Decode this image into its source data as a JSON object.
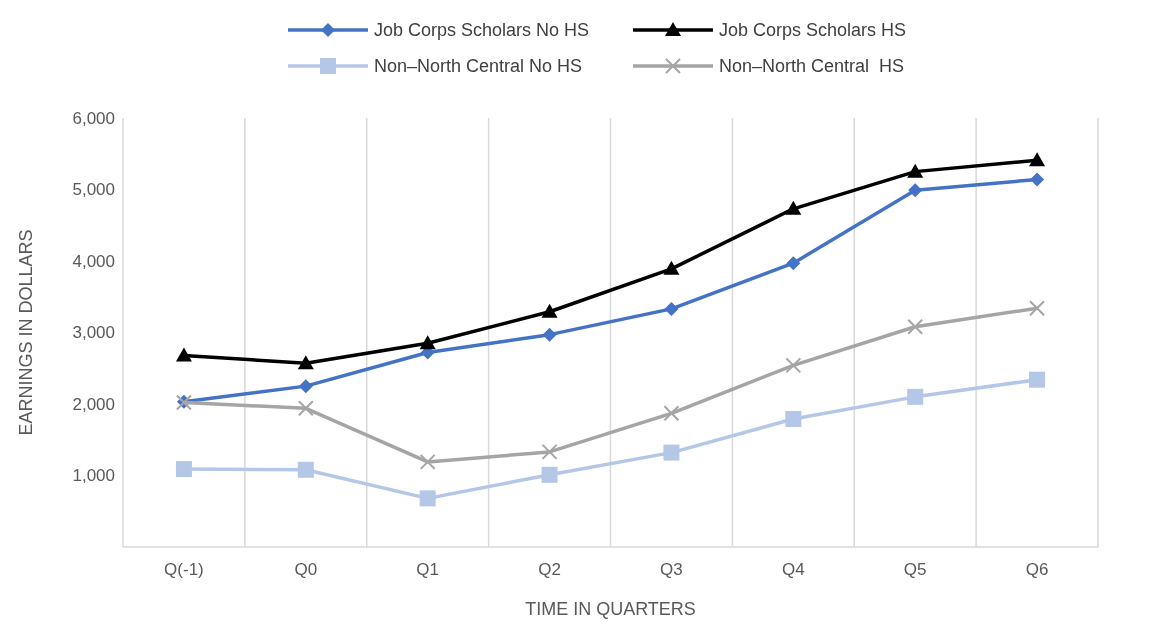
{
  "chart_data": {
    "type": "line",
    "xlabel": "TIME IN QUARTERS",
    "ylabel": "EARNINGS IN DOLLARS",
    "categories": [
      "Q(-1)",
      "Q0",
      "Q1",
      "Q2",
      "Q3",
      "Q4",
      "Q5",
      "Q6"
    ],
    "ylim": [
      0,
      6000
    ],
    "yticks": [
      {
        "value": 0,
        "label": null
      },
      {
        "value": 1000,
        "label": "1,000"
      },
      {
        "value": 2000,
        "label": "2,000"
      },
      {
        "value": 3000,
        "label": "3,000"
      },
      {
        "value": 4000,
        "label": "4,000"
      },
      {
        "value": 5000,
        "label": "5,000"
      },
      {
        "value": 6000,
        "label": "6,000"
      }
    ],
    "grid": "x",
    "legend": "top",
    "line_style": "solid",
    "series": [
      {
        "name": "Job Corps Scholars No HS",
        "color": "#4472c4",
        "marker": "diamond",
        "values": [
          2030,
          2250,
          2720,
          2970,
          3330,
          3970,
          4990,
          5140
        ]
      },
      {
        "name": "Job Corps Scholars HS",
        "color": "#000000",
        "marker": "triangle",
        "values": [
          2680,
          2570,
          2850,
          3290,
          3890,
          4730,
          5250,
          5410
        ]
      },
      {
        "name": "Non–North Central No HS",
        "color": "#b4c7e7",
        "marker": "square",
        "values": [
          1090,
          1080,
          680,
          1010,
          1320,
          1790,
          2100,
          2340
        ]
      },
      {
        "name": "Non–North Central  HS",
        "color": "#a5a5a5",
        "marker": "cross",
        "values": [
          2020,
          1940,
          1190,
          1330,
          1870,
          2540,
          3080,
          3340
        ]
      }
    ]
  }
}
